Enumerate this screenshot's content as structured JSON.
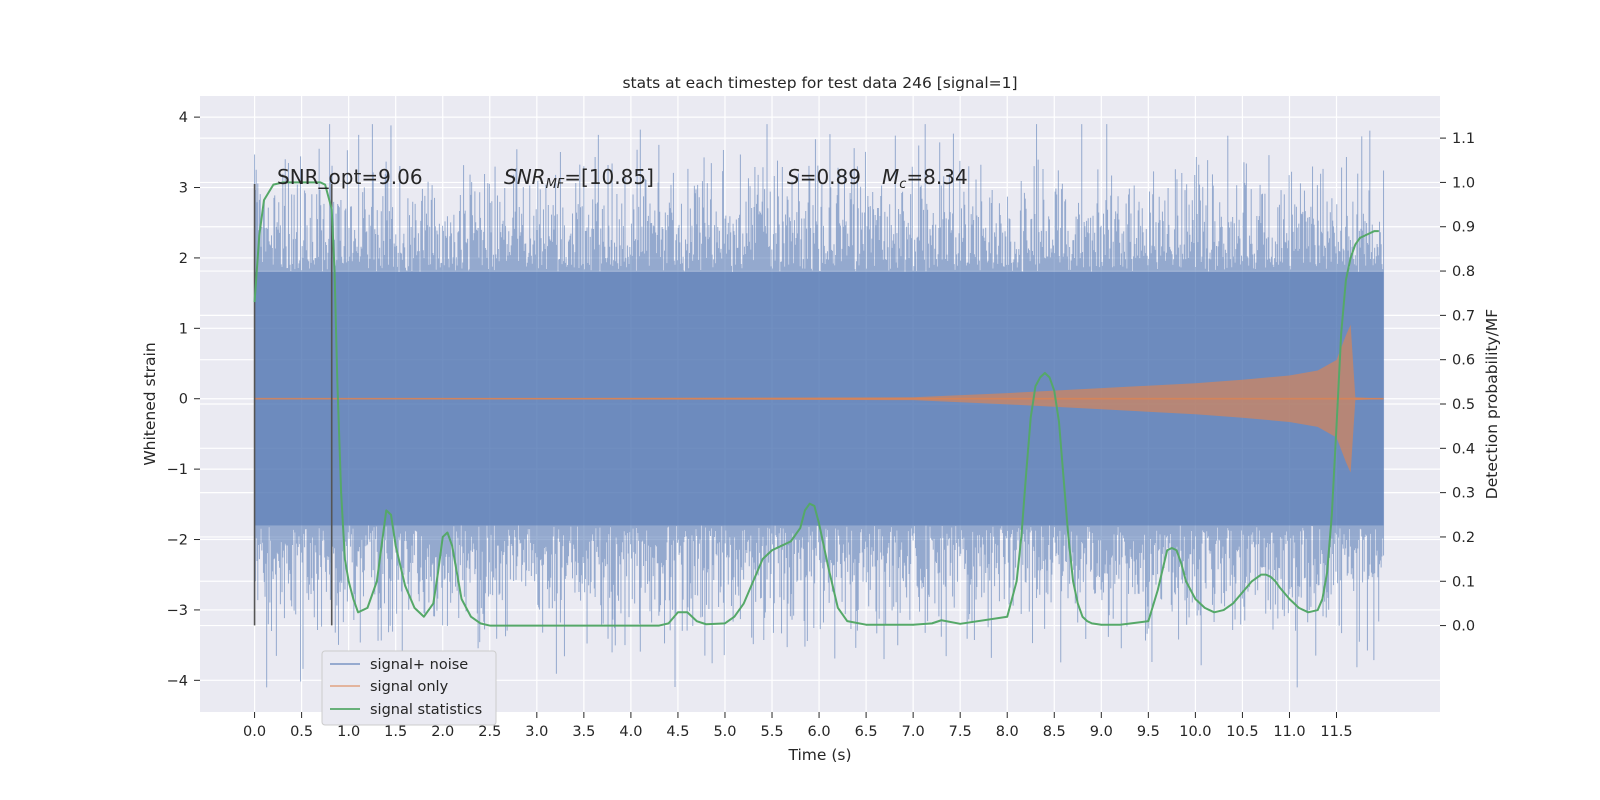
{
  "chart_data": {
    "type": "line",
    "title": "stats at each timestep for test data 246 [signal=1]",
    "xlabel": "Time (s)",
    "ylabel_left": "Whitened strain",
    "ylabel_right": "Detection probability/MF",
    "xlim": [
      -0.58,
      12.6
    ],
    "ylim_left": [
      -4.45,
      4.3
    ],
    "ylim_right": [
      -0.195,
      1.195
    ],
    "x_ticks": [
      "0.0",
      "0.5",
      "1.0",
      "1.5",
      "2.0",
      "2.5",
      "3.0",
      "3.5",
      "4.0",
      "4.5",
      "5.0",
      "5.5",
      "6.0",
      "6.5",
      "7.0",
      "7.5",
      "8.0",
      "8.5",
      "9.0",
      "9.5",
      "10.0",
      "10.5",
      "11.0",
      "11.5"
    ],
    "y_ticks_left": [
      "4",
      "3",
      "2",
      "1",
      "0",
      "−1",
      "−2",
      "−3",
      "−4"
    ],
    "y_ticks_right": [
      "1.1",
      "1.0",
      "0.9",
      "0.8",
      "0.7",
      "0.6",
      "0.5",
      "0.4",
      "0.3",
      "0.2",
      "0.1",
      "0.0"
    ],
    "grid": true,
    "legend_position": "lower left",
    "annotations": {
      "snr_opt": "SNR_opt=9.06",
      "snr_mf": [
        "SNR",
        "MF",
        "=[10.85]"
      ],
      "s_val": [
        "S",
        "=0.89"
      ],
      "mc_val": [
        "M",
        "c",
        "=8.34"
      ]
    },
    "window_markers_x": [
      0.0,
      0.82
    ],
    "series": [
      {
        "name": "signal+ noise",
        "color": "#4c72b0",
        "description_envelope": {
          "x_range": [
            0.0,
            12.0
          ],
          "typical_abs": 1.8,
          "max_peak": 3.9,
          "min_peak": -4.1
        }
      },
      {
        "name": "signal only",
        "color": "#dd8452",
        "envelope": {
          "x": [
            0.0,
            7.0,
            8.0,
            9.0,
            10.0,
            10.5,
            11.0,
            11.3,
            11.5,
            11.6,
            11.65,
            11.7,
            12.0
          ],
          "amplitude": [
            0.0,
            0.02,
            0.08,
            0.15,
            0.22,
            0.27,
            0.33,
            0.4,
            0.55,
            0.9,
            1.05,
            0.02,
            0.0
          ]
        }
      },
      {
        "name": "signal statistics",
        "color": "#55a868",
        "x": [
          0.0,
          0.05,
          0.1,
          0.2,
          0.3,
          0.5,
          0.7,
          0.75,
          0.82,
          0.85,
          0.88,
          0.92,
          0.96,
          1.0,
          1.05,
          1.1,
          1.2,
          1.3,
          1.35,
          1.4,
          1.45,
          1.5,
          1.6,
          1.7,
          1.8,
          1.9,
          1.95,
          2.0,
          2.05,
          2.1,
          2.15,
          2.2,
          2.3,
          2.4,
          2.5,
          2.7,
          3.0,
          4.3,
          4.4,
          4.5,
          4.6,
          4.7,
          4.8,
          5.0,
          5.1,
          5.2,
          5.3,
          5.4,
          5.5,
          5.6,
          5.7,
          5.8,
          5.85,
          5.9,
          5.95,
          6.0,
          6.1,
          6.2,
          6.3,
          6.5,
          7.0,
          7.2,
          7.3,
          7.5,
          8.0,
          8.1,
          8.15,
          8.2,
          8.25,
          8.3,
          8.35,
          8.4,
          8.45,
          8.5,
          8.55,
          8.6,
          8.65,
          8.7,
          8.75,
          8.8,
          8.85,
          8.9,
          9.0,
          9.2,
          9.5,
          9.6,
          9.7,
          9.75,
          9.8,
          9.85,
          9.9,
          10.0,
          10.1,
          10.2,
          10.3,
          10.4,
          10.5,
          10.6,
          10.7,
          10.75,
          10.8,
          10.85,
          10.9,
          11.0,
          11.1,
          11.2,
          11.3,
          11.35,
          11.4,
          11.45,
          11.5,
          11.55,
          11.6,
          11.65,
          11.7,
          11.75,
          11.8,
          11.85,
          11.9,
          11.95
        ],
        "y": [
          0.73,
          0.88,
          0.96,
          0.995,
          1.0,
          1.0,
          1.0,
          0.995,
          0.94,
          0.8,
          0.55,
          0.3,
          0.15,
          0.1,
          0.06,
          0.03,
          0.04,
          0.1,
          0.18,
          0.26,
          0.25,
          0.18,
          0.09,
          0.04,
          0.02,
          0.05,
          0.12,
          0.2,
          0.21,
          0.18,
          0.12,
          0.06,
          0.02,
          0.005,
          0.0,
          0.0,
          0.0,
          0.0,
          0.005,
          0.03,
          0.03,
          0.01,
          0.003,
          0.005,
          0.02,
          0.05,
          0.1,
          0.15,
          0.17,
          0.18,
          0.19,
          0.22,
          0.26,
          0.275,
          0.27,
          0.23,
          0.13,
          0.04,
          0.01,
          0.002,
          0.002,
          0.005,
          0.012,
          0.004,
          0.02,
          0.1,
          0.2,
          0.34,
          0.47,
          0.54,
          0.56,
          0.57,
          0.56,
          0.53,
          0.46,
          0.33,
          0.2,
          0.1,
          0.05,
          0.02,
          0.01,
          0.005,
          0.002,
          0.002,
          0.01,
          0.08,
          0.17,
          0.175,
          0.17,
          0.14,
          0.1,
          0.06,
          0.04,
          0.03,
          0.035,
          0.05,
          0.075,
          0.1,
          0.115,
          0.115,
          0.11,
          0.1,
          0.085,
          0.06,
          0.04,
          0.03,
          0.035,
          0.06,
          0.12,
          0.25,
          0.45,
          0.66,
          0.78,
          0.83,
          0.86,
          0.875,
          0.88,
          0.885,
          0.89,
          0.89
        ]
      }
    ]
  }
}
